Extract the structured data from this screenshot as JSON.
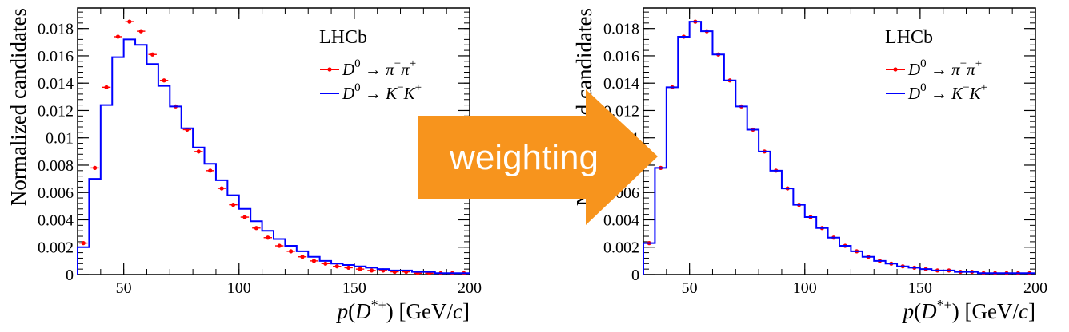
{
  "chart_data": [
    {
      "type": "histogram",
      "panel": "before",
      "experiment_label": "LHCb",
      "ylabel": "Normalized candidates",
      "xlabel": {
        "var": "p",
        "open": "(",
        "D": "D",
        "sup": "*+",
        "close": ")",
        "unit": "[GeV/",
        "c": "c",
        "end": "]"
      },
      "xlim": [
        30,
        200
      ],
      "ylim": [
        0,
        0.0195
      ],
      "xticks": [
        50,
        100,
        150,
        200
      ],
      "yticks": [
        "0",
        "0.002",
        "0.004",
        "0.006",
        "0.008",
        "0.01",
        "0.012",
        "0.014",
        "0.016",
        "0.018"
      ],
      "yticks_values": [
        0,
        0.002,
        0.004,
        0.006,
        0.008,
        0.01,
        0.012,
        0.014,
        0.016,
        0.018
      ],
      "bin_edges": [
        30,
        35,
        40,
        45,
        50,
        55,
        60,
        65,
        70,
        75,
        80,
        85,
        90,
        95,
        100,
        105,
        110,
        115,
        120,
        125,
        130,
        135,
        140,
        145,
        150,
        155,
        160,
        165,
        170,
        175,
        180,
        185,
        190,
        195,
        200
      ],
      "series": [
        {
          "name": "pipi",
          "legend": {
            "lhs": "D",
            "sup": "0",
            "arrow": "→",
            "p1": "π",
            "p1sup": "−",
            "p2": "π",
            "p2sup": "+"
          },
          "style": "markers",
          "color": "#ff0000",
          "values": [
            0.0023,
            0.0078,
            0.0137,
            0.0174,
            0.0185,
            0.0178,
            0.0161,
            0.0142,
            0.0123,
            0.0106,
            0.009,
            0.0076,
            0.0063,
            0.0051,
            0.0042,
            0.0034,
            0.0027,
            0.0021,
            0.0017,
            0.0013,
            0.001,
            0.0008,
            0.0006,
            0.0005,
            0.0004,
            0.0003,
            0.0003,
            0.0002,
            0.0002,
            0.0001,
            0.0001,
            0.0001,
            0.0001,
            0.0001
          ]
        },
        {
          "name": "KK",
          "legend": {
            "lhs": "D",
            "sup": "0",
            "arrow": "→",
            "p1": "K",
            "p1sup": "−",
            "p2": "K",
            "p2sup": "+"
          },
          "style": "step",
          "color": "#0000ff",
          "values": [
            0.002,
            0.007,
            0.0124,
            0.0159,
            0.0172,
            0.0168,
            0.0154,
            0.0138,
            0.0123,
            0.0107,
            0.0093,
            0.0081,
            0.0069,
            0.0058,
            0.0048,
            0.0039,
            0.0032,
            0.0026,
            0.0021,
            0.0017,
            0.0013,
            0.001,
            0.0008,
            0.0007,
            0.0006,
            0.0005,
            0.0004,
            0.0003,
            0.0003,
            0.0002,
            0.0002,
            0.0001,
            0.0001,
            0.0001
          ]
        }
      ]
    },
    {
      "type": "histogram",
      "panel": "after",
      "experiment_label": "LHCb",
      "ylabel": "Normalized candidates",
      "xlabel": {
        "var": "p",
        "open": "(",
        "D": "D",
        "sup": "*+",
        "close": ")",
        "unit": "[GeV/",
        "c": "c",
        "end": "]"
      },
      "xlim": [
        30,
        200
      ],
      "ylim": [
        0,
        0.0195
      ],
      "xticks": [
        50,
        100,
        150,
        200
      ],
      "yticks": [
        "0",
        "0.002",
        "0.004",
        "0.006",
        "0.008",
        "0.01",
        "0.012",
        "0.014",
        "0.016",
        "0.018"
      ],
      "yticks_values": [
        0,
        0.002,
        0.004,
        0.006,
        0.008,
        0.01,
        0.012,
        0.014,
        0.016,
        0.018
      ],
      "bin_edges": [
        30,
        35,
        40,
        45,
        50,
        55,
        60,
        65,
        70,
        75,
        80,
        85,
        90,
        95,
        100,
        105,
        110,
        115,
        120,
        125,
        130,
        135,
        140,
        145,
        150,
        155,
        160,
        165,
        170,
        175,
        180,
        185,
        190,
        195,
        200
      ],
      "series": [
        {
          "name": "pipi",
          "legend": {
            "lhs": "D",
            "sup": "0",
            "arrow": "→",
            "p1": "π",
            "p1sup": "−",
            "p2": "π",
            "p2sup": "+"
          },
          "style": "markers",
          "color": "#ff0000",
          "values": [
            0.0023,
            0.0078,
            0.0137,
            0.0174,
            0.0185,
            0.0178,
            0.0161,
            0.0142,
            0.0123,
            0.0106,
            0.009,
            0.0076,
            0.0063,
            0.0051,
            0.0042,
            0.0034,
            0.0027,
            0.0021,
            0.0017,
            0.0013,
            0.001,
            0.0008,
            0.0006,
            0.0005,
            0.0004,
            0.0003,
            0.0003,
            0.0002,
            0.0002,
            0.0001,
            0.0001,
            0.0001,
            0.0001,
            0.0001
          ]
        },
        {
          "name": "KK",
          "legend": {
            "lhs": "D",
            "sup": "0",
            "arrow": "→",
            "p1": "K",
            "p1sup": "−",
            "p2": "K",
            "p2sup": "+"
          },
          "style": "step",
          "color": "#0000ff",
          "values": [
            0.0023,
            0.0078,
            0.0137,
            0.0174,
            0.0185,
            0.0178,
            0.0161,
            0.0142,
            0.0123,
            0.0106,
            0.009,
            0.0076,
            0.0063,
            0.0051,
            0.0042,
            0.0034,
            0.0027,
            0.0021,
            0.0017,
            0.0013,
            0.001,
            0.0008,
            0.0006,
            0.0005,
            0.0004,
            0.0003,
            0.0003,
            0.0002,
            0.0002,
            0.0001,
            0.0001,
            0.0001,
            0.0001,
            0.0001
          ]
        }
      ]
    }
  ],
  "arrow": {
    "label": "weighting",
    "color": "#f7941d"
  }
}
